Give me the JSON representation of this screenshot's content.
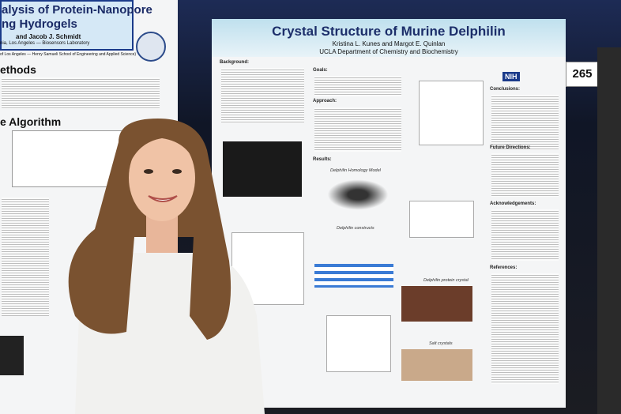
{
  "left_poster": {
    "title_lines": [
      "alysis of Protein-Nanopore",
      "ng Hydrogels"
    ],
    "authors": "and Jacob J. Schmidt",
    "affiliations": [
      "nia, Los Angeles — Biosensors Laboratory",
      "of Los Angeles — Henry Samueli School of Engineering and Applied Science)"
    ],
    "headings": [
      "ethods",
      "e Algorithm"
    ]
  },
  "right_poster": {
    "title": "Crystal Structure of Murine Delphilin",
    "authors": "Kristina L. Kunes and Margot E. Quinlan",
    "department": "UCLA Department of Chemistry and Biochemistry",
    "logo": "NIH",
    "sections": [
      "Background:",
      "Goals:",
      "Approach:",
      "Results:",
      "Conclusions:",
      "Future Directions:",
      "Acknowledgements:",
      "References:"
    ],
    "figure_captions": [
      "Delphilin Homology Model",
      "Delphilin constructs",
      "Delphilin protein crystal",
      "Salt crystals"
    ]
  },
  "board_number": "265"
}
